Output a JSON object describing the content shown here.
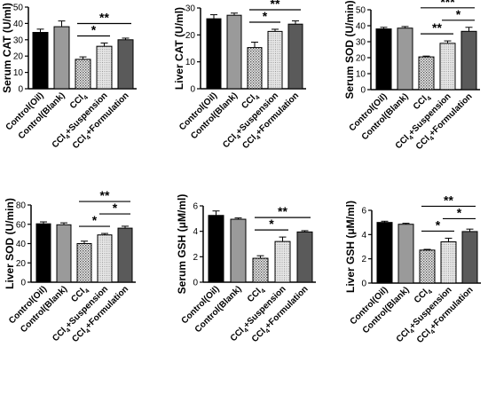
{
  "chart_data": [
    {
      "type": "bar",
      "ylabel": "Serum CAT (U/ml)",
      "ylim": [
        0,
        50
      ],
      "yticks": [
        0,
        10,
        20,
        30,
        40,
        50
      ],
      "categories": [
        "Control(Oil)",
        "Control(Blank)",
        "CCl4",
        "CCl4+Suspension",
        "CCl4+Formulation"
      ],
      "values": [
        34.5,
        38.0,
        18.0,
        26.0,
        30.0
      ],
      "errors": [
        2.0,
        3.5,
        1.5,
        2.0,
        1.0
      ],
      "significance": [
        {
          "from": 2,
          "to": 4,
          "label": "**"
        },
        {
          "from": 2,
          "to": 3,
          "label": "*"
        }
      ]
    },
    {
      "type": "bar",
      "ylabel": "Liver CAT (U/ml)",
      "ylim": [
        0,
        30
      ],
      "yticks": [
        0,
        10,
        20,
        30
      ],
      "categories": [
        "Control(Oil)",
        "Control(Blank)",
        "CCl4",
        "CCl4+Suspension",
        "CCl4+Formulation"
      ],
      "values": [
        26.0,
        27.3,
        15.3,
        21.3,
        24.0
      ],
      "errors": [
        1.5,
        0.8,
        2.0,
        0.8,
        1.2
      ],
      "significance": [
        {
          "from": 2,
          "to": 4,
          "label": "**"
        },
        {
          "from": 2,
          "to": 3,
          "label": "*"
        }
      ]
    },
    {
      "type": "bar",
      "ylabel": "Serum SOD (U/min)",
      "ylim": [
        0,
        50
      ],
      "yticks": [
        0,
        10,
        20,
        30,
        40,
        50
      ],
      "categories": [
        "Control(Oil)",
        "Control(Blank)",
        "CCl4",
        "CCl4+Suspension",
        "CCl4+Formulation"
      ],
      "values": [
        38.0,
        38.5,
        20.5,
        29.0,
        36.5
      ],
      "errors": [
        1.0,
        1.0,
        0.5,
        1.5,
        2.5
      ],
      "significance": [
        {
          "from": 2,
          "to": 4,
          "label": "***"
        },
        {
          "from": 2,
          "to": 3,
          "label": "**"
        },
        {
          "from": 3,
          "to": 4,
          "label": "*"
        }
      ]
    },
    {
      "type": "bar",
      "ylabel": "Liver SOD (U/min)",
      "ylim": [
        0,
        80
      ],
      "yticks": [
        0,
        20,
        40,
        60,
        80
      ],
      "categories": [
        "Control(Oil)",
        "Control(Blank)",
        "CCl4",
        "CCl4+Suspension",
        "CCl4+Formulation"
      ],
      "values": [
        60.5,
        59.5,
        40.0,
        49.0,
        56.0
      ],
      "errors": [
        2.0,
        2.0,
        2.5,
        1.5,
        2.0
      ],
      "significance": [
        {
          "from": 2,
          "to": 4,
          "label": "**"
        },
        {
          "from": 2,
          "to": 3,
          "label": "*"
        },
        {
          "from": 3,
          "to": 4,
          "label": "*"
        }
      ]
    },
    {
      "type": "bar",
      "ylabel": "Serum GSH (μM/ml)",
      "ylim": [
        0,
        6
      ],
      "yticks": [
        0,
        2,
        4,
        6
      ],
      "categories": [
        "Control(Oil)",
        "Control(Blank)",
        "CCl4",
        "CCl4+Suspension",
        "CCl4+Formulation"
      ],
      "values": [
        5.25,
        4.95,
        1.88,
        3.2,
        3.95
      ],
      "errors": [
        0.35,
        0.1,
        0.2,
        0.35,
        0.1
      ],
      "significance": [
        {
          "from": 2,
          "to": 4,
          "label": "**"
        },
        {
          "from": 2,
          "to": 3,
          "label": "*"
        }
      ]
    },
    {
      "type": "bar",
      "ylabel": "Liver GSH (μM/ml)",
      "ylim": [
        0,
        6
      ],
      "yticks": [
        0,
        2,
        4,
        6
      ],
      "categories": [
        "Control(Oil)",
        "Control(Blank)",
        "CCl4",
        "CCl4+Suspension",
        "CCl4+Formulation"
      ],
      "values": [
        5.0,
        4.85,
        2.72,
        3.4,
        4.25
      ],
      "errors": [
        0.1,
        0.08,
        0.06,
        0.3,
        0.2
      ],
      "significance": [
        {
          "from": 2,
          "to": 4,
          "label": "**"
        },
        {
          "from": 2,
          "to": 3,
          "label": "*"
        },
        {
          "from": 3,
          "to": 4,
          "label": "*"
        }
      ]
    }
  ],
  "colors": {
    "bars": [
      "#000000",
      "#9a9a9a",
      "#cfcfcf",
      "#d9d9d9",
      "#5a5a5a"
    ],
    "pattern_bars": [
      false,
      false,
      true,
      true,
      false
    ],
    "axis": "#000000"
  }
}
